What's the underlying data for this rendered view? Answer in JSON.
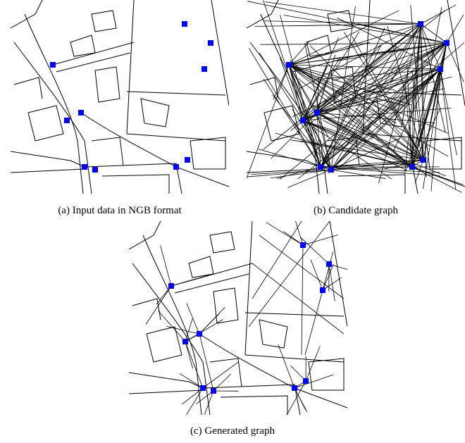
{
  "panels": [
    {
      "caption": "(a) Input data in NGB format"
    },
    {
      "caption": "(b) Candidate graph"
    },
    {
      "caption": "(c) Generated graph"
    }
  ]
}
